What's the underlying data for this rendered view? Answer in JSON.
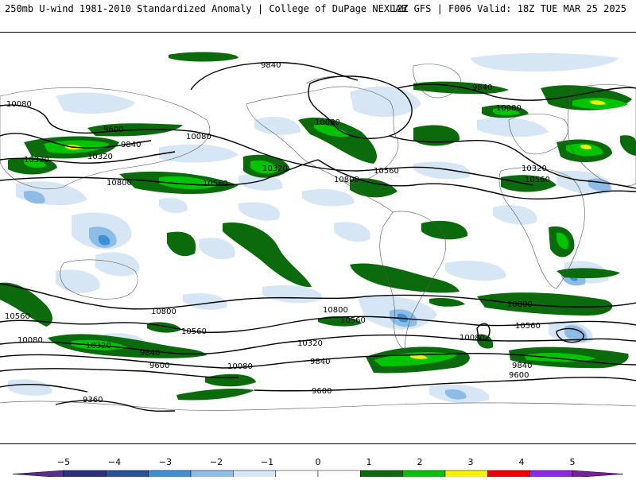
{
  "header": {
    "left": "250mb U-wind 1981-2010 Standardized Anomaly | College of DuPage NEXLAB",
    "right": "12Z GFS | F006 Valid: 18Z TUE MAR 25 2025"
  },
  "contour_labels": [
    {
      "id": "c-9840-top",
      "text": "9840"
    },
    {
      "id": "c-10080-nw",
      "text": "10080"
    },
    {
      "id": "c-9600-asia",
      "text": "9600"
    },
    {
      "id": "c-9840-asia",
      "text": "9840"
    },
    {
      "id": "c-10080-asia",
      "text": "10080"
    },
    {
      "id": "c-10320-asia",
      "text": "10320"
    },
    {
      "id": "c-10560-pac",
      "text": "10560"
    },
    {
      "id": "c-10800-pac",
      "text": "10800"
    },
    {
      "id": "c-10320-pac",
      "text": "10320"
    },
    {
      "id": "c-10080-can",
      "text": "10080"
    },
    {
      "id": "c-10320-atl",
      "text": "10320"
    },
    {
      "id": "c-10560-us",
      "text": "10560"
    },
    {
      "id": "c-10800-gulf",
      "text": "10800"
    },
    {
      "id": "c-9840-ne",
      "text": "9840"
    },
    {
      "id": "c-10080-ne",
      "text": "10080"
    },
    {
      "id": "c-10320-eu",
      "text": "10320"
    },
    {
      "id": "c-10560-eu",
      "text": "10560"
    },
    {
      "id": "c-10560-sw",
      "text": "10560"
    },
    {
      "id": "c-10800-sw",
      "text": "10800"
    },
    {
      "id": "c-10560-spac",
      "text": "10560"
    },
    {
      "id": "c-10080-sw",
      "text": "10080"
    },
    {
      "id": "c-10320-sw",
      "text": "10320"
    },
    {
      "id": "c-9840-s",
      "text": "9840"
    },
    {
      "id": "c-9600-s",
      "text": "9600"
    },
    {
      "id": "c-10080-s",
      "text": "10080"
    },
    {
      "id": "c-9360-s",
      "text": "9360"
    },
    {
      "id": "c-10800-sa",
      "text": "10800"
    },
    {
      "id": "c-10560-sa",
      "text": "10560"
    },
    {
      "id": "c-10320-sa",
      "text": "10320"
    },
    {
      "id": "c-9840-sa",
      "text": "9840"
    },
    {
      "id": "c-9600-sa",
      "text": "9600"
    },
    {
      "id": "c-10080-sa",
      "text": "10080"
    },
    {
      "id": "c-10800-sio",
      "text": "10800"
    },
    {
      "id": "c-10560-sio",
      "text": "10560"
    },
    {
      "id": "c-9840-sio",
      "text": "9840"
    },
    {
      "id": "c-9600-sio",
      "text": "9600"
    }
  ],
  "colorbar": {
    "ticks": [
      "−5",
      "−4",
      "−3",
      "−2",
      "−1",
      "0",
      "1",
      "2",
      "3",
      "4",
      "5"
    ],
    "colors": [
      "#2b2f7e",
      "#27539a",
      "#3d8fd6",
      "#8dbde6",
      "#d6e6f4",
      "#ffffff",
      "#ffffff",
      "#0b6a0b",
      "#00c400",
      "#f7f000",
      "#ee0000",
      "#8a2be2"
    ],
    "end_left_color": "#5b2e8c",
    "end_right_color": "#7a1f9a"
  }
}
